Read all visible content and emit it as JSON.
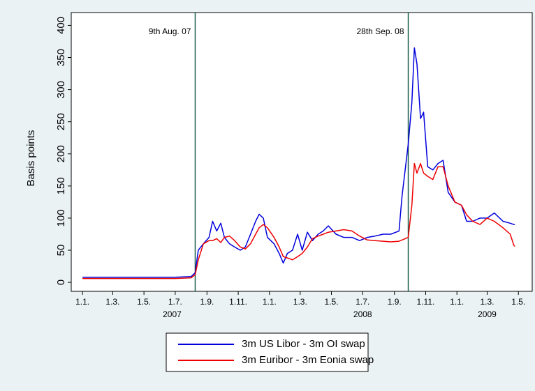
{
  "chart_data": {
    "type": "line",
    "y_label": "Basis points",
    "x": [
      "2007-01-01",
      "2007-03-01",
      "2007-05-01",
      "2007-07-01",
      "2007-08-01",
      "2007-08-09",
      "2007-08-15",
      "2007-08-25",
      "2007-09-05",
      "2007-09-12",
      "2007-09-20",
      "2007-09-28",
      "2007-10-05",
      "2007-10-15",
      "2007-10-25",
      "2007-11-05",
      "2007-11-15",
      "2007-11-25",
      "2007-12-05",
      "2007-12-12",
      "2007-12-20",
      "2007-12-28",
      "2008-01-10",
      "2008-01-20",
      "2008-01-28",
      "2008-02-05",
      "2008-02-15",
      "2008-02-25",
      "2008-03-05",
      "2008-03-15",
      "2008-03-25",
      "2008-04-05",
      "2008-04-15",
      "2008-04-25",
      "2008-05-10",
      "2008-05-25",
      "2008-06-10",
      "2008-06-25",
      "2008-07-10",
      "2008-07-25",
      "2008-08-10",
      "2008-08-25",
      "2008-09-10",
      "2008-09-16",
      "2008-09-28",
      "2008-10-05",
      "2008-10-10",
      "2008-10-15",
      "2008-10-22",
      "2008-10-28",
      "2008-11-05",
      "2008-11-15",
      "2008-11-25",
      "2008-12-05",
      "2008-12-15",
      "2008-12-28",
      "2009-01-10",
      "2009-01-20",
      "2009-02-01",
      "2009-02-15",
      "2009-03-01",
      "2009-03-15",
      "2009-04-01",
      "2009-04-15",
      "2009-04-22",
      "2009-04-24"
    ],
    "series": [
      {
        "name": "3m US Libor - 3m OI swap",
        "color": "#0000dd",
        "values": [
          8,
          8,
          8,
          8,
          9,
          15,
          50,
          60,
          70,
          95,
          80,
          92,
          70,
          60,
          55,
          50,
          55,
          75,
          95,
          106,
          100,
          70,
          60,
          45,
          30,
          45,
          50,
          75,
          50,
          78,
          65,
          75,
          80,
          88,
          75,
          70,
          70,
          65,
          70,
          72,
          75,
          75,
          80,
          135,
          215,
          280,
          365,
          340,
          255,
          265,
          180,
          175,
          185,
          190,
          140,
          125,
          120,
          95,
          95,
          100,
          100,
          108,
          95,
          92,
          90,
          90
        ]
      },
      {
        "name": "3m Euribor - 3m Eonia swap",
        "color": "#ee0000",
        "values": [
          6,
          6,
          6,
          6,
          7,
          12,
          35,
          60,
          65,
          65,
          68,
          62,
          70,
          72,
          65,
          55,
          52,
          60,
          75,
          85,
          90,
          85,
          70,
          55,
          40,
          38,
          35,
          40,
          45,
          55,
          68,
          72,
          75,
          78,
          80,
          82,
          80,
          72,
          66,
          65,
          64,
          63,
          64,
          66,
          70,
          120,
          185,
          170,
          185,
          170,
          165,
          160,
          180,
          180,
          150,
          125,
          120,
          105,
          95,
          90,
          100,
          95,
          85,
          75,
          58,
          56
        ]
      }
    ],
    "xlim": [
      "2006-12-10",
      "2009-05-28"
    ],
    "xticks": [
      {
        "value": "2007-01-01",
        "label": "1.1."
      },
      {
        "value": "2007-03-01",
        "label": "1.3."
      },
      {
        "value": "2007-05-01",
        "label": "1.5."
      },
      {
        "value": "2007-07-01",
        "label": "1.7."
      },
      {
        "value": "2007-09-01",
        "label": "1.9."
      },
      {
        "value": "2007-11-01",
        "label": "1.11."
      },
      {
        "value": "2008-01-01",
        "label": "1.1."
      },
      {
        "value": "2008-03-01",
        "label": "1.3."
      },
      {
        "value": "2008-05-01",
        "label": "1.5."
      },
      {
        "value": "2008-07-01",
        "label": "1.7."
      },
      {
        "value": "2008-09-01",
        "label": "1.9."
      },
      {
        "value": "2008-11-01",
        "label": "1.11."
      },
      {
        "value": "2009-01-01",
        "label": "1.1."
      },
      {
        "value": "2009-03-01",
        "label": "1.3."
      },
      {
        "value": "2009-05-01",
        "label": "1.5."
      }
    ],
    "year_labels": [
      {
        "value": "2007-06-25",
        "label": "2007"
      },
      {
        "value": "2008-07-01",
        "label": "2008"
      },
      {
        "value": "2009-03-01",
        "label": "2009"
      }
    ],
    "ylim": [
      -14,
      420
    ],
    "yticks": [
      0,
      50,
      100,
      150,
      200,
      250,
      300,
      350,
      400
    ],
    "annotations": [
      {
        "x": "2007-08-09",
        "label": "9th Aug. 07",
        "color": "#1a5c4c"
      },
      {
        "x": "2008-09-28",
        "label": "28th Sep. 08",
        "color": "#1a5c4c"
      }
    ],
    "grid": false
  }
}
